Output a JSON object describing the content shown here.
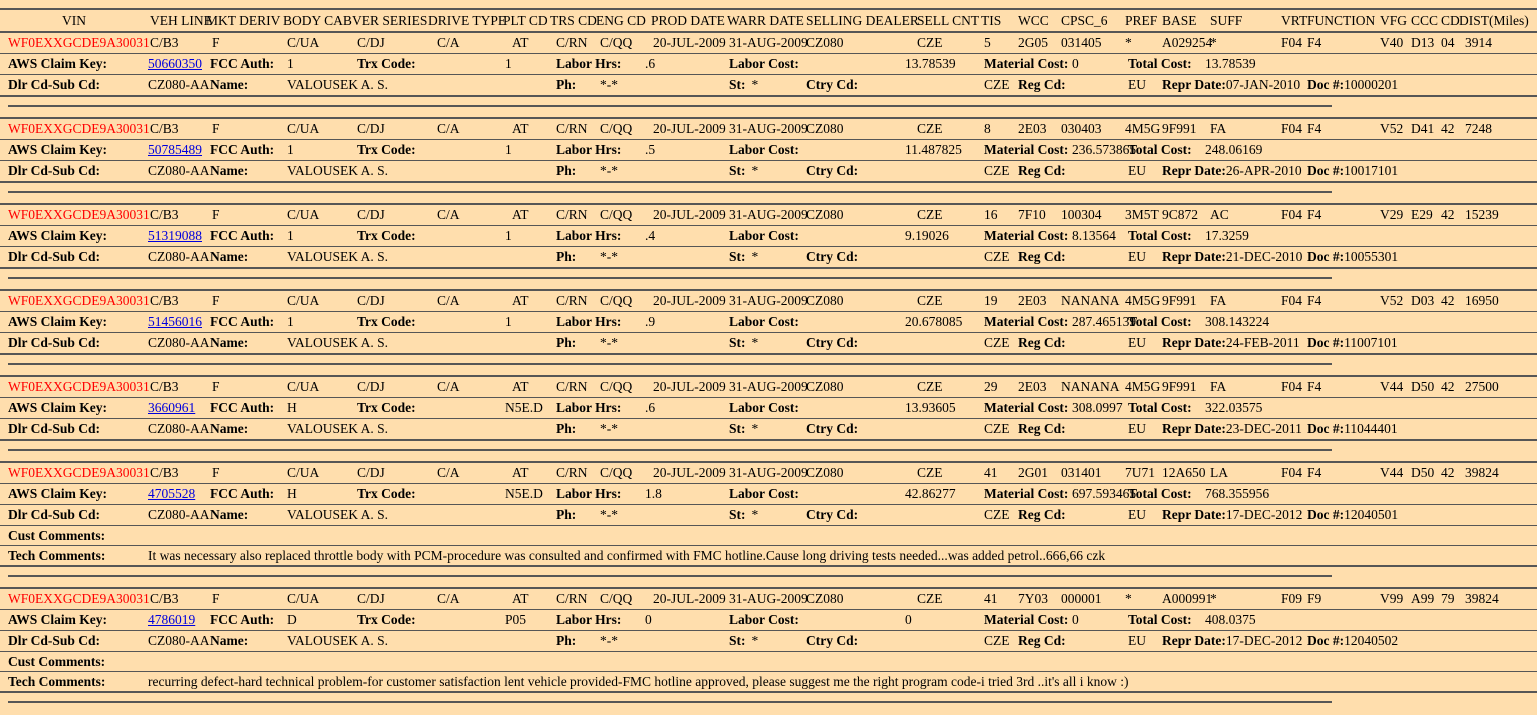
{
  "colors": {
    "background": "#ffdead",
    "line": "#565656",
    "vin_text": "#ff0000",
    "link": "#0000dd"
  },
  "header": {
    "columns": [
      "VIN",
      "VEH LINE",
      "MKT DERIV",
      "BODY CAB",
      "VER SERIES",
      "DRIVE TYPE",
      "PLT CD",
      "TRS CD",
      "ENG CD",
      "PROD DATE",
      "WARR DATE",
      "SELLING DEALER",
      "SELL CNT",
      "TIS",
      "WCC",
      "CPSC_6",
      "PREF",
      "BASE",
      "SUFF",
      "VRT",
      "FUNCTION",
      "VFG",
      "CCC",
      "CD",
      "DIST(Miles)"
    ]
  },
  "labels": {
    "claim_key": "AWS Claim Key:",
    "fcc_auth": "FCC Auth:",
    "trx_code": "Trx Code:",
    "labor_hrs": "Labor Hrs:",
    "labor_cost": "Labor Cost:",
    "material_cost": "Material Cost:",
    "total_cost": "Total Cost:",
    "dlr_cd": "Dlr Cd-Sub Cd:",
    "name": "Name:",
    "ph": "Ph:",
    "st": "St:",
    "ctry_cd": "Ctry Cd:",
    "reg_cd": "Reg Cd:",
    "repr_date": "Repr Date:",
    "doc": "Doc #:",
    "cust_comments": "Cust Comments:",
    "tech_comments": "Tech Comments:"
  },
  "records": [
    {
      "vin": "WF0EXXGCDE9A30031",
      "veh_line": "C/B3",
      "mkt_deriv": "F",
      "body_cab": "C/UA",
      "ver_series": "C/DJ",
      "drive_type": "C/A",
      "plt_cd": "AT",
      "trs_cd": "C/RN",
      "eng_cd": "C/QQ",
      "prod_date": "20-JUL-2009",
      "warr_date": "31-AUG-2009",
      "selling_dealer": "CZ080",
      "sell_cnt": "CZE",
      "tis": "5",
      "wcc": "2G05",
      "cpsc_6": "031405",
      "pref": "*",
      "base": "A029254",
      "suff": "*",
      "vrt": "F04",
      "function": "F4",
      "vfg": "V40",
      "ccc": "D13",
      "cd": "04",
      "dist": "3914",
      "claim_key": "50660350",
      "fcc_auth": "1",
      "trx_code": "1",
      "labor_hrs": ".6",
      "labor_cost": "13.78539",
      "material_cost": "0",
      "total_cost": "13.78539",
      "dlr_cd": "CZ080-AA",
      "name": "VALOUSEK A. S.",
      "ph": "*-*",
      "st": "*",
      "ctry_cd": "CZE",
      "reg_cd": "EU",
      "repr_date": "07-JAN-2010",
      "doc": "10000201"
    },
    {
      "vin": "WF0EXXGCDE9A30031",
      "veh_line": "C/B3",
      "mkt_deriv": "F",
      "body_cab": "C/UA",
      "ver_series": "C/DJ",
      "drive_type": "C/A",
      "plt_cd": "AT",
      "trs_cd": "C/RN",
      "eng_cd": "C/QQ",
      "prod_date": "20-JUL-2009",
      "warr_date": "31-AUG-2009",
      "selling_dealer": "CZ080",
      "sell_cnt": "CZE",
      "tis": "8",
      "wcc": "2E03",
      "cpsc_6": "030403",
      "pref": "4M5G",
      "base": "9F991",
      "suff": "FA",
      "vrt": "F04",
      "function": "F4",
      "vfg": "V52",
      "ccc": "D41",
      "cd": "42",
      "dist": "7248",
      "claim_key": "50785489",
      "fcc_auth": "1",
      "trx_code": "1",
      "labor_hrs": ".5",
      "labor_cost": "11.487825",
      "material_cost": "236.573865",
      "total_cost": "248.06169",
      "dlr_cd": "CZ080-AA",
      "name": "VALOUSEK A. S.",
      "ph": "*-*",
      "st": "*",
      "ctry_cd": "CZE",
      "reg_cd": "EU",
      "repr_date": "26-APR-2010",
      "doc": "10017101"
    },
    {
      "vin": "WF0EXXGCDE9A30031",
      "veh_line": "C/B3",
      "mkt_deriv": "F",
      "body_cab": "C/UA",
      "ver_series": "C/DJ",
      "drive_type": "C/A",
      "plt_cd": "AT",
      "trs_cd": "C/RN",
      "eng_cd": "C/QQ",
      "prod_date": "20-JUL-2009",
      "warr_date": "31-AUG-2009",
      "selling_dealer": "CZ080",
      "sell_cnt": "CZE",
      "tis": "16",
      "wcc": "7F10",
      "cpsc_6": "100304",
      "pref": "3M5T",
      "base": "9C872",
      "suff": "AC",
      "vrt": "F04",
      "function": "F4",
      "vfg": "V29",
      "ccc": "E29",
      "cd": "42",
      "dist": "15239",
      "claim_key": "51319088",
      "fcc_auth": "1",
      "trx_code": "1",
      "labor_hrs": ".4",
      "labor_cost": "9.19026",
      "material_cost": "8.13564",
      "total_cost": "17.3259",
      "dlr_cd": "CZ080-AA",
      "name": "VALOUSEK A. S.",
      "ph": "*-*",
      "st": "*",
      "ctry_cd": "CZE",
      "reg_cd": "EU",
      "repr_date": "21-DEC-2010",
      "doc": "10055301"
    },
    {
      "vin": "WF0EXXGCDE9A30031",
      "veh_line": "C/B3",
      "mkt_deriv": "F",
      "body_cab": "C/UA",
      "ver_series": "C/DJ",
      "drive_type": "C/A",
      "plt_cd": "AT",
      "trs_cd": "C/RN",
      "eng_cd": "C/QQ",
      "prod_date": "20-JUL-2009",
      "warr_date": "31-AUG-2009",
      "selling_dealer": "CZ080",
      "sell_cnt": "CZE",
      "tis": "19",
      "wcc": "2E03",
      "cpsc_6": "NANANA",
      "pref": "4M5G",
      "base": "9F991",
      "suff": "FA",
      "vrt": "F04",
      "function": "F4",
      "vfg": "V52",
      "ccc": "D03",
      "cd": "42",
      "dist": "16950",
      "claim_key": "51456016",
      "fcc_auth": "1",
      "trx_code": "1",
      "labor_hrs": ".9",
      "labor_cost": "20.678085",
      "material_cost": "287.465139",
      "total_cost": "308.143224",
      "dlr_cd": "CZ080-AA",
      "name": "VALOUSEK A. S.",
      "ph": "*-*",
      "st": "*",
      "ctry_cd": "CZE",
      "reg_cd": "EU",
      "repr_date": "24-FEB-2011",
      "doc": "11007101"
    },
    {
      "vin": "WF0EXXGCDE9A30031",
      "veh_line": "C/B3",
      "mkt_deriv": "F",
      "body_cab": "C/UA",
      "ver_series": "C/DJ",
      "drive_type": "C/A",
      "plt_cd": "AT",
      "trs_cd": "C/RN",
      "eng_cd": "C/QQ",
      "prod_date": "20-JUL-2009",
      "warr_date": "31-AUG-2009",
      "selling_dealer": "CZ080",
      "sell_cnt": "CZE",
      "tis": "29",
      "wcc": "2E03",
      "cpsc_6": "NANANA",
      "pref": "4M5G",
      "base": "9F991",
      "suff": "FA",
      "vrt": "F04",
      "function": "F4",
      "vfg": "V44",
      "ccc": "D50",
      "cd": "42",
      "dist": "27500",
      "claim_key": "3660961",
      "fcc_auth": "H",
      "trx_code": "N5E.D",
      "labor_hrs": ".6",
      "labor_cost": "13.93605",
      "material_cost": "308.0997",
      "total_cost": "322.03575",
      "dlr_cd": "CZ080-AA",
      "name": "VALOUSEK A. S.",
      "ph": "*-*",
      "st": "*",
      "ctry_cd": "CZE",
      "reg_cd": "EU",
      "repr_date": "23-DEC-2011",
      "doc": "11044401"
    },
    {
      "vin": "WF0EXXGCDE9A30031",
      "veh_line": "C/B3",
      "mkt_deriv": "F",
      "body_cab": "C/UA",
      "ver_series": "C/DJ",
      "drive_type": "C/A",
      "plt_cd": "AT",
      "trs_cd": "C/RN",
      "eng_cd": "C/QQ",
      "prod_date": "20-JUL-2009",
      "warr_date": "31-AUG-2009",
      "selling_dealer": "CZ080",
      "sell_cnt": "CZE",
      "tis": "41",
      "wcc": "2G01",
      "cpsc_6": "031401",
      "pref": "7U71",
      "base": "12A650",
      "suff": "LA",
      "vrt": "F04",
      "function": "F4",
      "vfg": "V44",
      "ccc": "D50",
      "cd": "42",
      "dist": "39824",
      "claim_key": "4705528",
      "fcc_auth": "H",
      "trx_code": "N5E.D",
      "labor_hrs": "1.8",
      "labor_cost": "42.86277",
      "material_cost": "697.593465",
      "total_cost": "768.355956",
      "dlr_cd": "CZ080-AA",
      "name": "VALOUSEK A. S.",
      "ph": "*-*",
      "st": "*",
      "ctry_cd": "CZE",
      "reg_cd": "EU",
      "repr_date": "17-DEC-2012",
      "doc": "12040501",
      "cust_comments": "",
      "tech_comments": "It was necessary also replaced throttle body with PCM-procedure was consulted and confirmed with FMC hotline.Cause long driving tests needed...was added petrol..666,66 czk"
    },
    {
      "vin": "WF0EXXGCDE9A30031",
      "veh_line": "C/B3",
      "mkt_deriv": "F",
      "body_cab": "C/UA",
      "ver_series": "C/DJ",
      "drive_type": "C/A",
      "plt_cd": "AT",
      "trs_cd": "C/RN",
      "eng_cd": "C/QQ",
      "prod_date": "20-JUL-2009",
      "warr_date": "31-AUG-2009",
      "selling_dealer": "CZ080",
      "sell_cnt": "CZE",
      "tis": "41",
      "wcc": "7Y03",
      "cpsc_6": "000001",
      "pref": "*",
      "base": "A000991",
      "suff": "*",
      "vrt": "F09",
      "function": "F9",
      "vfg": "V99",
      "ccc": "A99",
      "cd": "79",
      "dist": "39824",
      "claim_key": "4786019",
      "fcc_auth": "D",
      "trx_code": "P05",
      "labor_hrs": "0",
      "labor_cost": "0",
      "material_cost": "0",
      "total_cost": "408.0375",
      "dlr_cd": "CZ080-AA",
      "name": "VALOUSEK A. S.",
      "ph": "*-*",
      "st": "*",
      "ctry_cd": "CZE",
      "reg_cd": "EU",
      "repr_date": "17-DEC-2012",
      "doc": "12040502",
      "cust_comments": "",
      "tech_comments": "recurring defect-hard technical problem-for customer satisfaction lent vehicle provided-FMC hotline approved, please suggest me the right program code-i tried 3rd ..it's all i know :)"
    }
  ]
}
